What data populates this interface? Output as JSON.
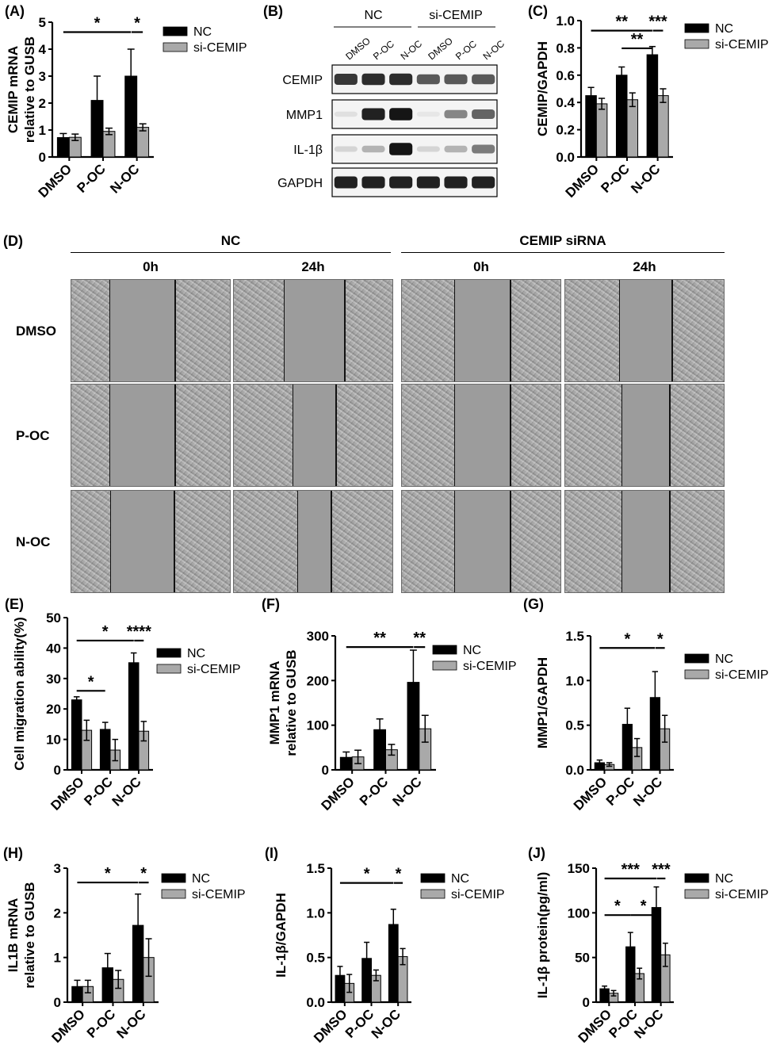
{
  "colors": {
    "nc": "#000000",
    "si": "#a9a9a9"
  },
  "panel_A": {
    "label": "(A)"
  },
  "panel_B": {
    "label": "(B)"
  },
  "panel_C": {
    "label": "(C)"
  },
  "panel_D": {
    "label": "(D)"
  },
  "panel_E": {
    "label": "(E)"
  },
  "panel_F": {
    "label": "(F)"
  },
  "panel_G": {
    "label": "(G)"
  },
  "panel_H": {
    "label": "(H)"
  },
  "panel_I": {
    "label": "(I)"
  },
  "panel_J": {
    "label": "(J)"
  },
  "western": {
    "group_labels": [
      "NC",
      "si-CEMIP"
    ],
    "lane_labels": [
      "DMSO",
      "P-OC",
      "N-OC",
      "DMSO",
      "P-OC",
      "N-OC"
    ],
    "band_labels": [
      "CEMIP",
      "MMP1",
      "IL-1β",
      "GAPDH"
    ],
    "band_intensities": [
      [
        0.8,
        0.85,
        0.85,
        0.65,
        0.65,
        0.65
      ],
      [
        0.05,
        0.9,
        0.95,
        0.02,
        0.45,
        0.6
      ],
      [
        0.1,
        0.25,
        0.95,
        0.1,
        0.25,
        0.5
      ],
      [
        0.9,
        0.9,
        0.9,
        0.9,
        0.9,
        0.9
      ]
    ]
  },
  "migration": {
    "group_labels": [
      "NC",
      "CEMIP siRNA"
    ],
    "time_labels": [
      "0h",
      "24h",
      "0h",
      "24h"
    ],
    "row_labels": [
      "DMSO",
      "P-OC",
      "N-OC"
    ],
    "gap_widths": [
      [
        0.41,
        0.38,
        0.35,
        0.33
      ],
      [
        0.41,
        0.27,
        0.35,
        0.3
      ],
      [
        0.4,
        0.21,
        0.35,
        0.3
      ]
    ]
  },
  "chart_data": [
    {
      "id": "A",
      "type": "bar",
      "categories": [
        "DMSO",
        "P-OC",
        "N-OC"
      ],
      "ylabel": "CEMIP mRNA relative to GUSB",
      "ylim": [
        0,
        5
      ],
      "yticks": [
        "0",
        "1",
        "2",
        "3",
        "4",
        "5"
      ],
      "series": [
        {
          "name": "NC",
          "values": [
            0.72,
            2.1,
            3.0
          ],
          "errors": [
            0.15,
            0.9,
            1.0
          ]
        },
        {
          "name": "si-CEMIP",
          "values": [
            0.73,
            0.95,
            1.1
          ],
          "errors": [
            0.12,
            0.12,
            0.13
          ]
        }
      ],
      "annotations": [
        {
          "text": "*",
          "y": 4.75
        },
        {
          "text": "*",
          "y": 4.75
        }
      ]
    },
    {
      "id": "C",
      "type": "bar",
      "categories": [
        "DMSO",
        "P-OC",
        "N-OC"
      ],
      "ylabel": "CEMIP/GAPDH",
      "ylim": [
        0,
        1.0
      ],
      "yticks": [
        "0.0",
        "0.2",
        "0.4",
        "0.6",
        "0.8",
        "1.0"
      ],
      "series": [
        {
          "name": "NC",
          "values": [
            0.45,
            0.6,
            0.75
          ],
          "errors": [
            0.06,
            0.06,
            0.06
          ]
        },
        {
          "name": "si-CEMIP",
          "values": [
            0.39,
            0.42,
            0.45
          ],
          "errors": [
            0.04,
            0.05,
            0.05
          ]
        }
      ],
      "annotations": [
        {
          "text": "**",
          "y": 0.95
        },
        {
          "text": "**",
          "y": 0.82
        },
        {
          "text": "***",
          "y": 0.95
        }
      ]
    },
    {
      "id": "E",
      "type": "bar",
      "categories": [
        "DMSO",
        "P-OC",
        "N-OC"
      ],
      "ylabel": "Cell migration ability(%)",
      "ylim": [
        0,
        50
      ],
      "yticks": [
        "0",
        "10",
        "20",
        "30",
        "40",
        "50"
      ],
      "series": [
        {
          "name": "NC",
          "values": [
            23,
            13.3,
            35.2
          ],
          "errors": [
            1.0,
            2.3,
            3.2
          ]
        },
        {
          "name": "si-CEMIP",
          "values": [
            13,
            6.5,
            12.7
          ],
          "errors": [
            3.3,
            3.5,
            3.2
          ]
        }
      ],
      "annotations": [
        {
          "text": "*",
          "y": 43.5
        },
        {
          "text": "*",
          "y": 27
        },
        {
          "text": "****",
          "y": 43.5
        }
      ]
    },
    {
      "id": "F",
      "type": "bar",
      "categories": [
        "DMSO",
        "P-OC",
        "N-OC"
      ],
      "ylabel": "MMP1 mRNA relative to GUSB",
      "ylim": [
        0,
        300
      ],
      "yticks": [
        "0",
        "100",
        "200",
        "300"
      ],
      "series": [
        {
          "name": "NC",
          "values": [
            28,
            90,
            196
          ],
          "errors": [
            12,
            24,
            72
          ]
        },
        {
          "name": "si-CEMIP",
          "values": [
            29,
            45,
            92
          ],
          "errors": [
            15,
            12,
            30
          ]
        }
      ],
      "annotations": [
        {
          "text": "**",
          "y": 282
        },
        {
          "text": "**",
          "y": 282
        }
      ]
    },
    {
      "id": "G",
      "type": "bar",
      "categories": [
        "DMSO",
        "P-OC",
        "N-OC"
      ],
      "ylabel": "MMP1/GAPDH",
      "ylim": [
        0,
        1.5
      ],
      "yticks": [
        "0.0",
        "0.5",
        "1.0",
        "1.5"
      ],
      "series": [
        {
          "name": "NC",
          "values": [
            0.08,
            0.51,
            0.81
          ],
          "errors": [
            0.03,
            0.18,
            0.29
          ]
        },
        {
          "name": "si-CEMIP",
          "values": [
            0.06,
            0.25,
            0.46
          ],
          "errors": [
            0.02,
            0.1,
            0.15
          ]
        }
      ],
      "annotations": [
        {
          "text": "*",
          "y": 1.4
        },
        {
          "text": "*",
          "y": 1.4
        }
      ]
    },
    {
      "id": "H",
      "type": "bar",
      "categories": [
        "DMSO",
        "P-OC",
        "N-OC"
      ],
      "ylabel": "IL1B mRNA relative to GUSB",
      "ylim": [
        0,
        3
      ],
      "yticks": [
        "0",
        "1",
        "2",
        "3"
      ],
      "series": [
        {
          "name": "NC",
          "values": [
            0.35,
            0.77,
            1.72
          ],
          "errors": [
            0.14,
            0.32,
            0.7
          ]
        },
        {
          "name": "si-CEMIP",
          "values": [
            0.35,
            0.51,
            1.0
          ],
          "errors": [
            0.14,
            0.2,
            0.42
          ]
        }
      ],
      "annotations": [
        {
          "text": "*",
          "y": 2.75
        },
        {
          "text": "*",
          "y": 2.75
        }
      ]
    },
    {
      "id": "I",
      "type": "bar",
      "categories": [
        "DMSO",
        "P-OC",
        "N-OC"
      ],
      "ylabel": "IL-1β/GAPDH",
      "ylim": [
        0,
        1.5
      ],
      "yticks": [
        "0.0",
        "0.5",
        "1.0",
        "1.5"
      ],
      "series": [
        {
          "name": "NC",
          "values": [
            0.3,
            0.49,
            0.87
          ],
          "errors": [
            0.1,
            0.18,
            0.17
          ]
        },
        {
          "name": "si-CEMIP",
          "values": [
            0.21,
            0.3,
            0.51
          ],
          "errors": [
            0.1,
            0.06,
            0.09
          ]
        }
      ],
      "annotations": [
        {
          "text": "*",
          "y": 1.37
        },
        {
          "text": "*",
          "y": 1.37
        }
      ]
    },
    {
      "id": "J",
      "type": "bar",
      "categories": [
        "DMSO",
        "P-OC",
        "N-OC"
      ],
      "ylabel": "IL-1β protein(pg/ml)",
      "ylim": [
        0,
        150
      ],
      "yticks": [
        "0",
        "50",
        "100",
        "150"
      ],
      "series": [
        {
          "name": "NC",
          "values": [
            15,
            62,
            106
          ],
          "errors": [
            3,
            16,
            23
          ]
        },
        {
          "name": "si-CEMIP",
          "values": [
            10,
            32,
            53
          ],
          "errors": [
            3,
            6,
            13
          ]
        }
      ],
      "annotations": [
        {
          "text": "***",
          "y": 142
        },
        {
          "text": "*",
          "y": 101
        },
        {
          "text": "*",
          "y": 101
        },
        {
          "text": "***",
          "y": 142
        }
      ]
    }
  ]
}
